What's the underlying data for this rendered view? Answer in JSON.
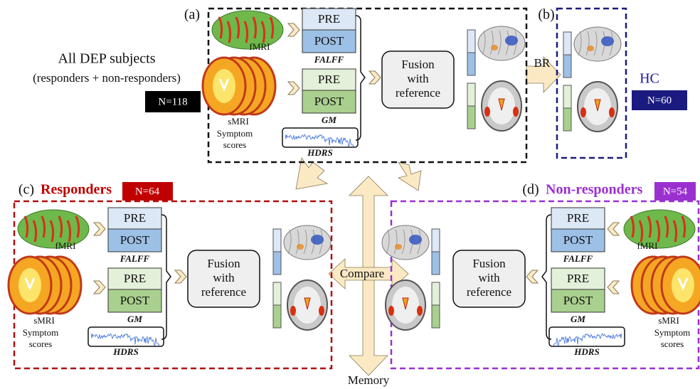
{
  "intro": {
    "title": "All DEP subjects",
    "subtitle": "(responders + non-responders)",
    "n": "N=118"
  },
  "panels": [
    {
      "label": "(a)",
      "fmri": "fMRI",
      "smri": "sMRI",
      "symptom": [
        "Symptom",
        "scores"
      ],
      "falff": {
        "pre": "PRE",
        "post": "POST",
        "name": "FALFF"
      },
      "gm": {
        "pre": "PRE",
        "post": "POST",
        "name": "GM"
      },
      "hdrs": "HDRS",
      "fusion": [
        "Fusion",
        "with",
        "reference"
      ]
    },
    {
      "label": "(b)",
      "group": "HC",
      "n": "N=60"
    },
    {
      "label": "(c)",
      "group": "Responders",
      "n": "N=64",
      "fmri": "fMRI",
      "smri": "sMRI",
      "symptom": [
        "Symptom",
        "scores"
      ],
      "falff": {
        "pre": "PRE",
        "post": "POST",
        "name": "FALFF"
      },
      "gm": {
        "pre": "PRE",
        "post": "POST",
        "name": "GM"
      },
      "hdrs": "HDRS",
      "fusion": [
        "Fusion",
        "with",
        "reference"
      ]
    },
    {
      "label": "(d)",
      "group": "Non-responders",
      "n": "N=54",
      "fmri": "fMRI",
      "smri": "sMRI",
      "symptom": [
        "Symptom",
        "scores"
      ],
      "falff": {
        "pre": "PRE",
        "post": "POST",
        "name": "FALFF"
      },
      "gm": {
        "pre": "PRE",
        "post": "POST",
        "name": "GM"
      },
      "hdrs": "HDRS",
      "fusion": [
        "Fusion",
        "with",
        "reference"
      ]
    }
  ],
  "arrows": {
    "br": "BR",
    "compare": "Compare",
    "memory": "Memory"
  }
}
